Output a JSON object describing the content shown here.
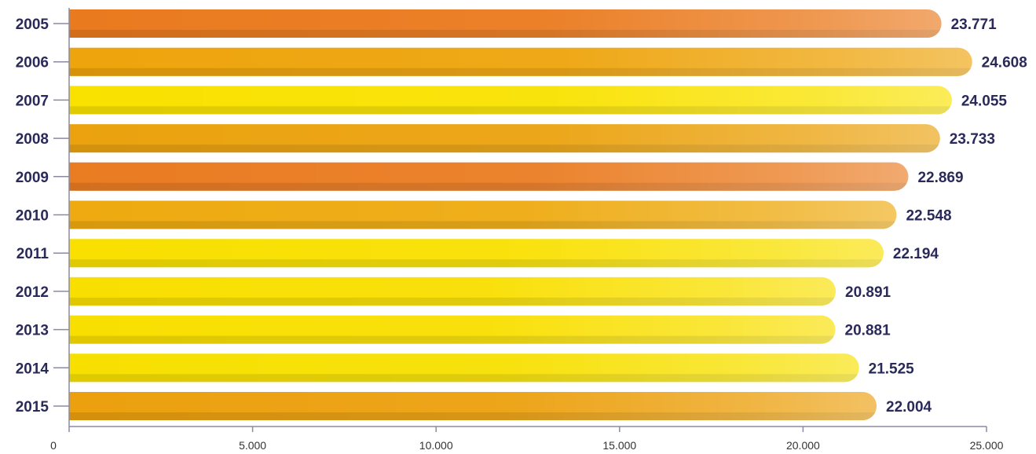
{
  "chart_data": {
    "type": "bar",
    "orientation": "horizontal",
    "categories": [
      "2005",
      "2006",
      "2007",
      "2008",
      "2009",
      "2010",
      "2011",
      "2012",
      "2013",
      "2014",
      "2015"
    ],
    "values": [
      23771,
      24608,
      24055,
      23733,
      22869,
      22548,
      22194,
      20891,
      20881,
      21525,
      22004
    ],
    "value_labels": [
      "23.771",
      "24.608",
      "24.055",
      "23.733",
      "22.869",
      "22.548",
      "22.194",
      "20.891",
      "20.881",
      "21.525",
      "22.004"
    ],
    "xlim": [
      0,
      25000
    ],
    "x_ticks": [
      0,
      5000,
      10000,
      15000,
      20000,
      25000
    ],
    "x_tick_labels": [
      "0",
      "5.000",
      "10.000",
      "15.000",
      "20.000",
      "25.000"
    ],
    "title": "",
    "xlabel": "",
    "ylabel": "",
    "grid": false,
    "bar_colors": [
      "#ea7a1e",
      "#eea40c",
      "#f9e200",
      "#eba20e",
      "#ea7c22",
      "#eeaa10",
      "#f9e000",
      "#f9df00",
      "#f9df00",
      "#f7e000",
      "#eca00e"
    ],
    "label_color": "#2a2a5a"
  }
}
